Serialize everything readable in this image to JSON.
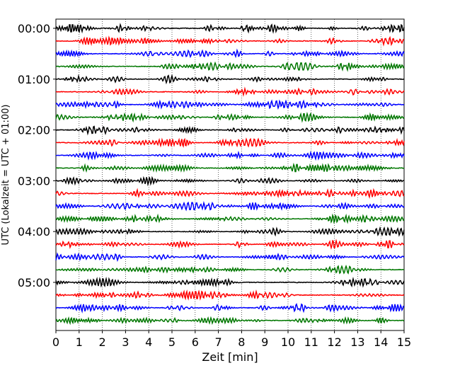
{
  "chart_data": {
    "type": "line",
    "title": "",
    "xlabel": "Zeit  [min]",
    "ylabel": "UTC (Lokalzeit = UTC + 01:00)",
    "xlim": [
      0,
      15
    ],
    "x_ticks": [
      "0",
      "1",
      "2",
      "3",
      "4",
      "5",
      "6",
      "7",
      "8",
      "9",
      "10",
      "11",
      "12",
      "13",
      "14",
      "15"
    ],
    "y_tick_labels": [
      "00:00",
      "01:00",
      "02:00",
      "03:00",
      "04:00",
      "05:00"
    ],
    "grid": "vertical dotted lines at each minute",
    "trace_interval_minutes": 15,
    "trace_count": 24,
    "colors": [
      "#000000",
      "#ff0000",
      "#0000ff",
      "#007700"
    ],
    "legend": "none"
  }
}
